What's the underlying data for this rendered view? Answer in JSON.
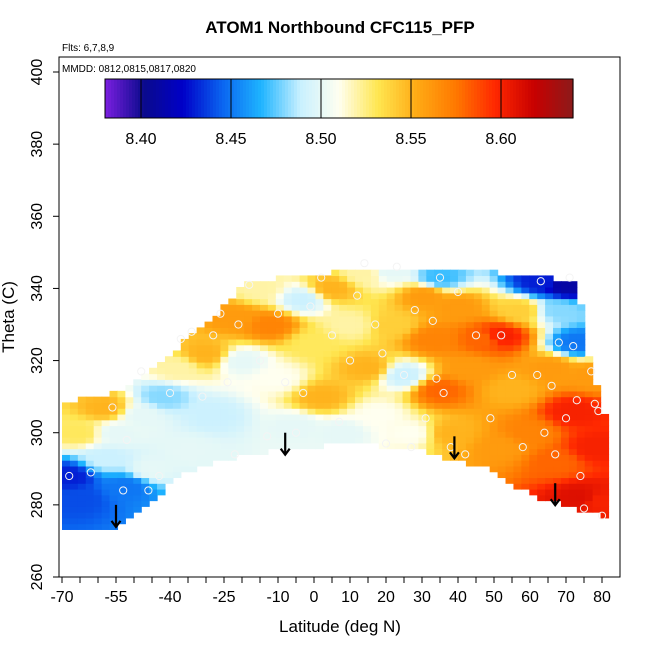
{
  "chart_data": {
    "type": "heatmap",
    "title": "ATOM1 Northbound CFC115_PFP",
    "flights_note": "Flts: 6,7,8,9",
    "dates_note": "MMDD: 0812,0815,0817,0820",
    "xlabel": "Latitude (deg N)",
    "ylabel": "Theta (C)",
    "xlim": [
      -70,
      80
    ],
    "ylim": [
      260,
      400
    ],
    "x_ticks": [
      -70,
      -55,
      -40,
      -25,
      -10,
      0,
      10,
      20,
      30,
      40,
      50,
      60,
      70,
      80
    ],
    "x_tick_labels": [
      "-70",
      "-55",
      "-40",
      "-25",
      "-10",
      "0",
      "10",
      "20",
      "30",
      "40",
      "50",
      "60",
      "70",
      "80"
    ],
    "y_ticks": [
      260,
      280,
      300,
      320,
      340,
      360,
      380,
      400
    ],
    "y_tick_labels": [
      "260",
      "280",
      "300",
      "320",
      "340",
      "360",
      "380",
      "400"
    ],
    "colorbar": {
      "range": [
        8.38,
        8.64
      ],
      "ticks": [
        8.4,
        8.45,
        8.5,
        8.55,
        8.6
      ],
      "tick_labels": [
        "8.40",
        "8.45",
        "8.50",
        "8.55",
        "8.60"
      ],
      "colors": [
        "#7b1fe0",
        "#0a0a8c",
        "#0000c8",
        "#0a64f0",
        "#1eb4ff",
        "#c8f0ff",
        "#fffff0",
        "#ffe650",
        "#ffaa14",
        "#ff7800",
        "#ff2800",
        "#c80000",
        "#8c1a1a"
      ]
    },
    "lower_boundary": [
      [
        -70,
        273
      ],
      [
        -55,
        274
      ],
      [
        -45,
        281
      ],
      [
        -38,
        288
      ],
      [
        -30,
        291
      ],
      [
        -20,
        294
      ],
      [
        -10,
        295
      ],
      [
        0,
        296
      ],
      [
        10,
        298
      ],
      [
        20,
        296
      ],
      [
        30,
        295
      ],
      [
        40,
        292
      ],
      [
        48,
        290
      ],
      [
        55,
        286
      ],
      [
        62,
        282
      ],
      [
        70,
        280
      ],
      [
        80,
        277
      ]
    ],
    "upper_boundary": [
      [
        -70,
        308
      ],
      [
        -62,
        310
      ],
      [
        -55,
        311
      ],
      [
        -50,
        314
      ],
      [
        -45,
        318
      ],
      [
        -40,
        322
      ],
      [
        -35,
        326
      ],
      [
        -30,
        330
      ],
      [
        -25,
        335
      ],
      [
        -20,
        341
      ],
      [
        -10,
        343
      ],
      [
        0,
        344
      ],
      [
        10,
        345
      ],
      [
        20,
        346
      ],
      [
        30,
        345
      ],
      [
        40,
        345
      ],
      [
        46,
        345
      ],
      [
        56,
        344
      ],
      [
        65,
        343
      ],
      [
        72,
        342
      ],
      [
        75,
        334
      ],
      [
        76,
        322
      ],
      [
        78,
        316
      ],
      [
        79,
        312
      ],
      [
        80,
        305
      ]
    ],
    "anchors": [
      [
        -68,
        288,
        8.43
      ],
      [
        -65,
        300,
        8.53
      ],
      [
        -65,
        282,
        8.44
      ],
      [
        -58,
        293,
        8.49
      ],
      [
        -58,
        307,
        8.55
      ],
      [
        -55,
        300,
        8.5
      ],
      [
        -52,
        285,
        8.45
      ],
      [
        -48,
        305,
        8.5
      ],
      [
        -45,
        290,
        8.5
      ],
      [
        -42,
        310,
        8.48
      ],
      [
        -38,
        318,
        8.52
      ],
      [
        -35,
        295,
        8.5
      ],
      [
        -30,
        322,
        8.55
      ],
      [
        -28,
        305,
        8.49
      ],
      [
        -22,
        332,
        8.56
      ],
      [
        -20,
        320,
        8.5
      ],
      [
        -15,
        340,
        8.52
      ],
      [
        -12,
        330,
        8.57
      ],
      [
        -10,
        315,
        8.51
      ],
      [
        -5,
        302,
        8.5
      ],
      [
        -3,
        337,
        8.49
      ],
      [
        0,
        325,
        8.53
      ],
      [
        2,
        310,
        8.55
      ],
      [
        5,
        340,
        8.55
      ],
      [
        8,
        300,
        8.5
      ],
      [
        10,
        330,
        8.52
      ],
      [
        14,
        344,
        8.52
      ],
      [
        15,
        318,
        8.55
      ],
      [
        18,
        305,
        8.51
      ],
      [
        21,
        345,
        8.5
      ],
      [
        22,
        330,
        8.54
      ],
      [
        25,
        316,
        8.49
      ],
      [
        27,
        300,
        8.51
      ],
      [
        31,
        338,
        8.56
      ],
      [
        33,
        326,
        8.57
      ],
      [
        35,
        343,
        8.47
      ],
      [
        35,
        312,
        8.58
      ],
      [
        38,
        300,
        8.55
      ],
      [
        40,
        335,
        8.56
      ],
      [
        43,
        318,
        8.56
      ],
      [
        47,
        326,
        8.58
      ],
      [
        52,
        327,
        8.6
      ],
      [
        52,
        296,
        8.56
      ],
      [
        55,
        312,
        8.55
      ],
      [
        57,
        334,
        8.54
      ],
      [
        60,
        300,
        8.57
      ],
      [
        63,
        342,
        8.43
      ],
      [
        66,
        318,
        8.56
      ],
      [
        67,
        292,
        8.58
      ],
      [
        68,
        334,
        8.48
      ],
      [
        70,
        341,
        8.41
      ],
      [
        72,
        306,
        8.6
      ],
      [
        73,
        325,
        8.45
      ],
      [
        74,
        282,
        8.61
      ],
      [
        77,
        316,
        8.56
      ],
      [
        78,
        296,
        8.6
      ],
      [
        79,
        281,
        8.6
      ]
    ],
    "sample_points": [
      [
        -68,
        288
      ],
      [
        -62,
        289
      ],
      [
        -56,
        307
      ],
      [
        -53,
        284
      ],
      [
        -52,
        298
      ],
      [
        -48,
        317
      ],
      [
        -46,
        284
      ],
      [
        -43,
        288
      ],
      [
        -40,
        311
      ],
      [
        -37,
        326
      ],
      [
        -34,
        328
      ],
      [
        -31,
        310
      ],
      [
        -28,
        327
      ],
      [
        -26,
        333
      ],
      [
        -24,
        314
      ],
      [
        -22,
        294
      ],
      [
        -21,
        330
      ],
      [
        -18,
        341
      ],
      [
        -15,
        320
      ],
      [
        -13,
        299
      ],
      [
        -10,
        333
      ],
      [
        -8,
        314
      ],
      [
        -5,
        300
      ],
      [
        -3,
        311
      ],
      [
        -1,
        335
      ],
      [
        2,
        343
      ],
      [
        5,
        327
      ],
      [
        7,
        303
      ],
      [
        10,
        320
      ],
      [
        12,
        338
      ],
      [
        14,
        347
      ],
      [
        17,
        330
      ],
      [
        19,
        322
      ],
      [
        20,
        297
      ],
      [
        23,
        346
      ],
      [
        25,
        316
      ],
      [
        27,
        296
      ],
      [
        28,
        334
      ],
      [
        31,
        304
      ],
      [
        33,
        331
      ],
      [
        34,
        315
      ],
      [
        35,
        343
      ],
      [
        36,
        311
      ],
      [
        38,
        296
      ],
      [
        40,
        339
      ],
      [
        42,
        294
      ],
      [
        45,
        327
      ],
      [
        49,
        304
      ],
      [
        52,
        327
      ],
      [
        55,
        316
      ],
      [
        58,
        296
      ],
      [
        62,
        316
      ],
      [
        63,
        342
      ],
      [
        64,
        300
      ],
      [
        66,
        313
      ],
      [
        67,
        294
      ],
      [
        68,
        325
      ],
      [
        70,
        304
      ],
      [
        71,
        343
      ],
      [
        72,
        324
      ],
      [
        73,
        309
      ],
      [
        74,
        288
      ],
      [
        75,
        279
      ],
      [
        77,
        317
      ],
      [
        78,
        308
      ],
      [
        79,
        306
      ],
      [
        80,
        277
      ]
    ],
    "arrows": [
      [
        -55,
        280
      ],
      [
        -8,
        300
      ],
      [
        39,
        299
      ],
      [
        67,
        286
      ]
    ]
  }
}
